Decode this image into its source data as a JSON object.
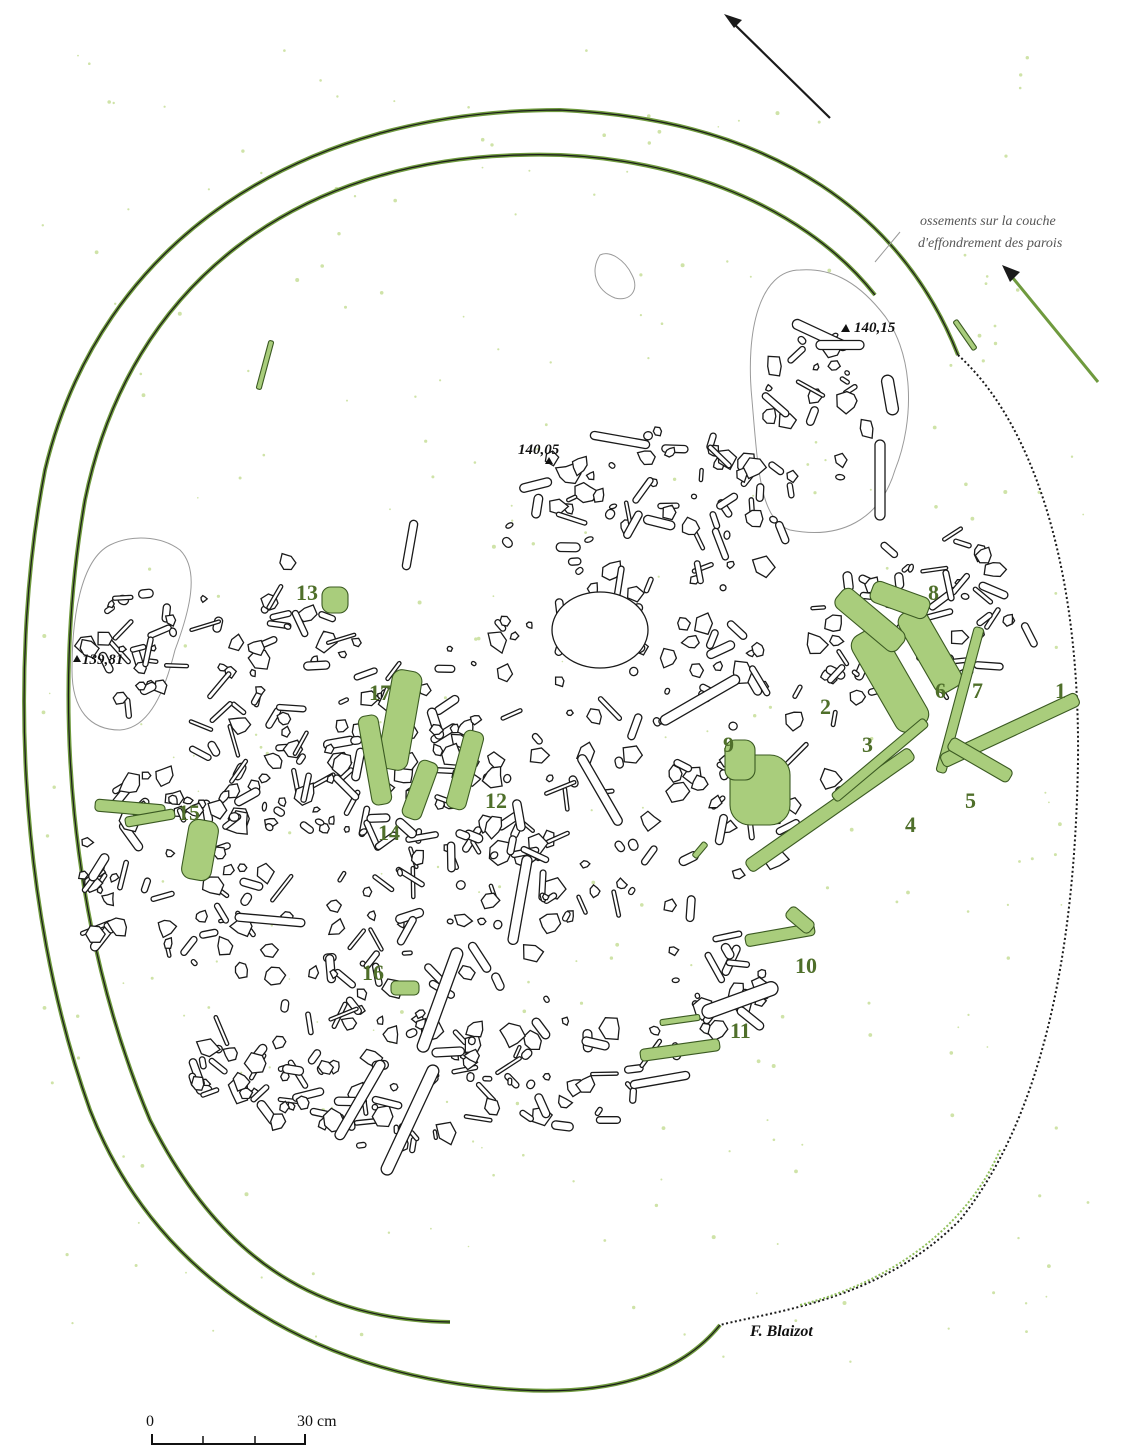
{
  "colors": {
    "highlight_green": "#a9cd7c",
    "outline_green": "#6f9a3e",
    "ink": "#1a1a1a",
    "zone_outline": "#9a9a9a"
  },
  "north_arrows": [
    {
      "name": "black-north-arrow",
      "color": "#1a1a1a"
    },
    {
      "name": "green-north-arrow",
      "color": "#6f9a3e"
    }
  ],
  "annotation": {
    "line1": "ossements sur la couche",
    "line2": "d'effondrement des parois"
  },
  "altitudes": [
    "140,15",
    "140,05",
    "139,81"
  ],
  "labels": [
    "1",
    "2",
    "3",
    "4",
    "5",
    "6",
    "7",
    "8",
    "9",
    "10",
    "11",
    "12",
    "13",
    "14",
    "15",
    "16",
    "17"
  ],
  "credit": "F. Blaizot",
  "scale": {
    "start_label": "0",
    "end_label": "30 cm"
  }
}
